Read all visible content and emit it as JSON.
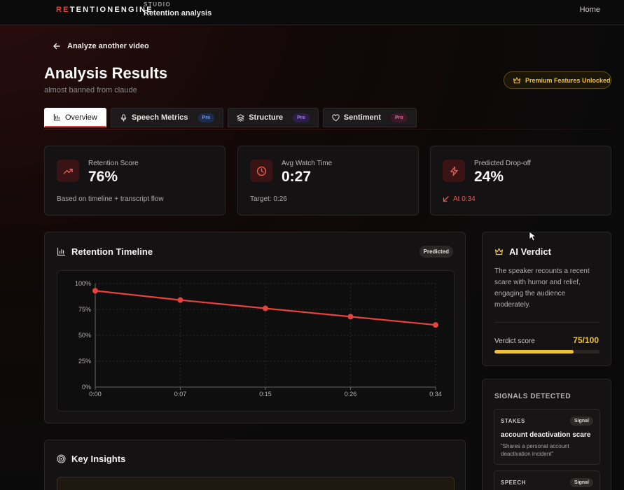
{
  "topbar": {
    "logo_accent": "RE",
    "logo_rest": "TENTIONENGINE",
    "studio": "STUDIO",
    "page": "Retention analysis",
    "home": "Home"
  },
  "back_label": "Analyze another video",
  "title": "Analysis Results",
  "subtitle": "almost banned from claude",
  "premium_label": "Premium Features Unlocked",
  "tabs": [
    {
      "label": "Overview",
      "icon": "bar-chart-icon",
      "active": true
    },
    {
      "label": "Speech Metrics",
      "icon": "mic-icon",
      "pro": "Pro",
      "pro_color": "#4a7be8"
    },
    {
      "label": "Structure",
      "icon": "layers-icon",
      "pro": "Pro",
      "pro_color": "#9a6be0"
    },
    {
      "label": "Sentiment",
      "icon": "heart-icon",
      "pro": "Pro",
      "pro_color": "#e05a8a"
    }
  ],
  "stats": [
    {
      "label": "Retention Score",
      "value": "76%",
      "note": "Based on timeline + transcript flow",
      "icon": "trending-up-icon"
    },
    {
      "label": "Avg Watch Time",
      "value": "0:27",
      "note": "Target: 0:26",
      "icon": "clock-icon"
    },
    {
      "label": "Predicted Drop-off",
      "value": "24%",
      "note": "At 0:34",
      "icon": "zap-icon"
    }
  ],
  "timeline": {
    "title": "Retention Timeline",
    "badge": "Predicted"
  },
  "chart_data": {
    "type": "line",
    "x": [
      "0:00",
      "0:07",
      "0:15",
      "0:26",
      "0:34"
    ],
    "values": [
      93,
      84,
      76,
      68,
      60
    ],
    "ytick_labels": [
      "100%",
      "75%",
      "50%",
      "25%",
      "0%"
    ],
    "ylim": [
      0,
      100
    ],
    "grid": true,
    "color": "#e8423d"
  },
  "verdict": {
    "title": "AI Verdict",
    "text": "The speaker recounts a recent scare with humor and relief, engaging the audience moderately.",
    "score_label": "Verdict score",
    "score_value": "75/100",
    "score_fraction": 0.75
  },
  "signals": {
    "title": "SIGNALS DETECTED",
    "items": [
      {
        "category": "STAKES",
        "tag": "Signal",
        "name": "account deactivation scare",
        "quote": "“Shares a personal account deactivation incident”"
      },
      {
        "category": "SPEECH",
        "tag": "Signal",
        "name": "",
        "quote": ""
      }
    ]
  },
  "insights": {
    "title": "Key Insights"
  },
  "colors": {
    "accent": "#e8423d",
    "gold": "#f0c236"
  }
}
